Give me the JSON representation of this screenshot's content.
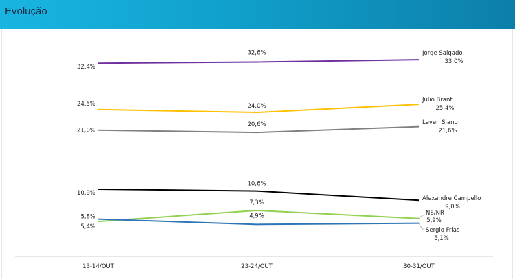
{
  "header": {
    "title": "Evolução"
  },
  "chart_data": {
    "type": "line",
    "categories": [
      "13-14/OUT",
      "23-24/OUT",
      "30-31/OUT"
    ],
    "series": [
      {
        "name": "Jorge Salgado",
        "color": "#7030a0",
        "values": [
          32.4,
          32.6,
          33.0
        ],
        "labels": [
          "32,4%",
          "32,6%",
          "33,0%"
        ]
      },
      {
        "name": "Julio Brant",
        "color": "#ffc000",
        "values": [
          24.5,
          24.0,
          25.4
        ],
        "labels": [
          "24,5%",
          "24,0%",
          "25,4%"
        ]
      },
      {
        "name": "Leven Siano",
        "color": "#808080",
        "values": [
          21.0,
          20.6,
          21.6
        ],
        "labels": [
          "21,0%",
          "20,6%",
          "21,6%"
        ]
      },
      {
        "name": "Alexandre Campello",
        "color": "#000000",
        "values": [
          10.9,
          10.6,
          9.0
        ],
        "labels": [
          "10,9%",
          "10,6%",
          "9,0%"
        ]
      },
      {
        "name": "NS/NR",
        "color": "#92d050",
        "values": [
          5.4,
          7.3,
          5.9
        ],
        "labels": [
          "5,4%",
          "7,3%",
          "5,9%"
        ]
      },
      {
        "name": "Sergio Frias",
        "color": "#2e75b6",
        "values": [
          5.8,
          4.9,
          5.1
        ],
        "labels": [
          "5,8%",
          "4,9%",
          "5,1%"
        ]
      }
    ]
  }
}
